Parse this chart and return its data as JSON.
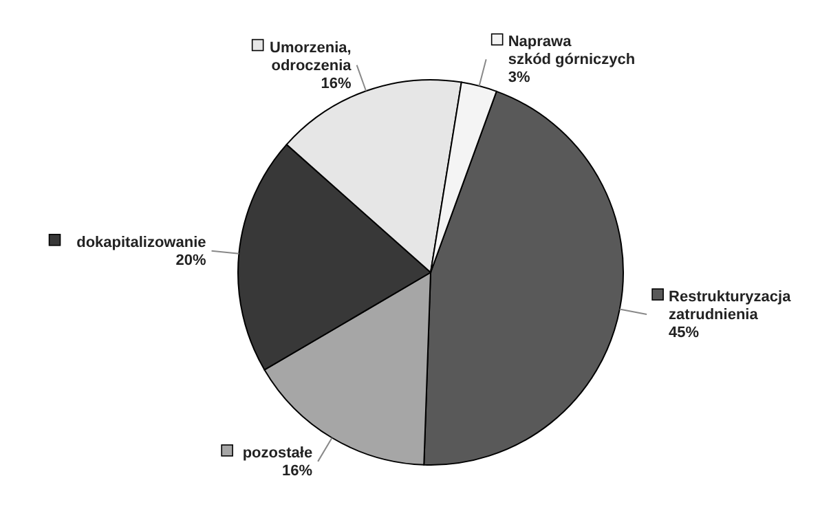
{
  "chart_data": {
    "type": "pie",
    "categories": [
      "Restrukturyzacja zatrudnienia",
      "pozostałe",
      "dokapitalizowanie",
      "Umorzenia, odroczenia",
      "Naprawa szkód górniczych"
    ],
    "values": [
      45,
      16,
      20,
      16,
      3
    ],
    "colors": [
      "#595959",
      "#a6a6a6",
      "#383838",
      "#e6e6e6",
      "#f4f4f4"
    ],
    "value_labels": [
      "45%",
      "16%",
      "20%",
      "16%",
      "3%"
    ],
    "legend": "right"
  }
}
